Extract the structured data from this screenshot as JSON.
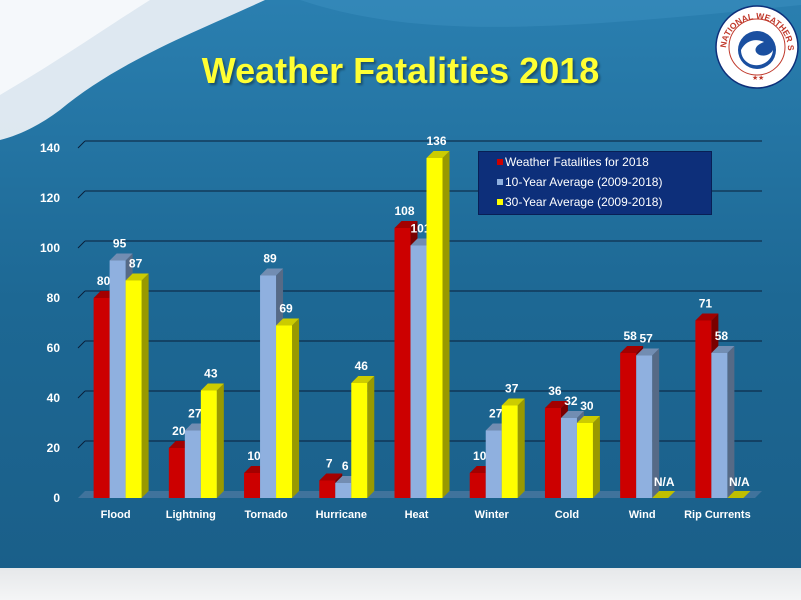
{
  "title": "Weather Fatalities 2018",
  "logo": {
    "text": "NATIONAL WEATHER SERVICE"
  },
  "colors": {
    "red": "#cc0000",
    "blue": "#8fb0df",
    "yellow": "#ffff00",
    "background": "#1e6a98",
    "title": "#ffff33"
  },
  "chart_data": {
    "type": "bar",
    "title": "Weather Fatalities 2018",
    "xlabel": "",
    "ylabel": "",
    "ylim": [
      0,
      140
    ],
    "yticks": [
      "0",
      "20",
      "40",
      "60",
      "80",
      "100",
      "120",
      "140"
    ],
    "grid": true,
    "legend_position": "top-right",
    "categories": [
      "Flood",
      "Lightning",
      "Tornado",
      "Hurricane",
      "Heat",
      "Winter",
      "Cold",
      "Wind",
      "Rip Currents"
    ],
    "series": [
      {
        "name": "Weather Fatalities for 2018",
        "color": "#cc0000",
        "values": [
          80,
          20,
          10,
          7,
          108,
          10,
          36,
          58,
          71
        ],
        "labels": [
          "80",
          "20",
          "10",
          "7",
          "108",
          "10",
          "36",
          "58",
          "71"
        ]
      },
      {
        "name": "10-Year Average (2009-2018)",
        "color": "#8fb0df",
        "values": [
          95,
          27,
          89,
          6,
          101,
          27,
          32,
          57,
          58
        ],
        "labels": [
          "95",
          "27",
          "89",
          "6",
          "101",
          "27",
          "32",
          "57",
          "58"
        ]
      },
      {
        "name": "30-Year Average (2009-2018)",
        "color": "#ffff00",
        "values": [
          87,
          43,
          69,
          46,
          136,
          37,
          30,
          null,
          null
        ],
        "labels": [
          "87",
          "43",
          "69",
          "46",
          "136",
          "37",
          "30",
          "N/A",
          "N/A"
        ]
      }
    ]
  }
}
